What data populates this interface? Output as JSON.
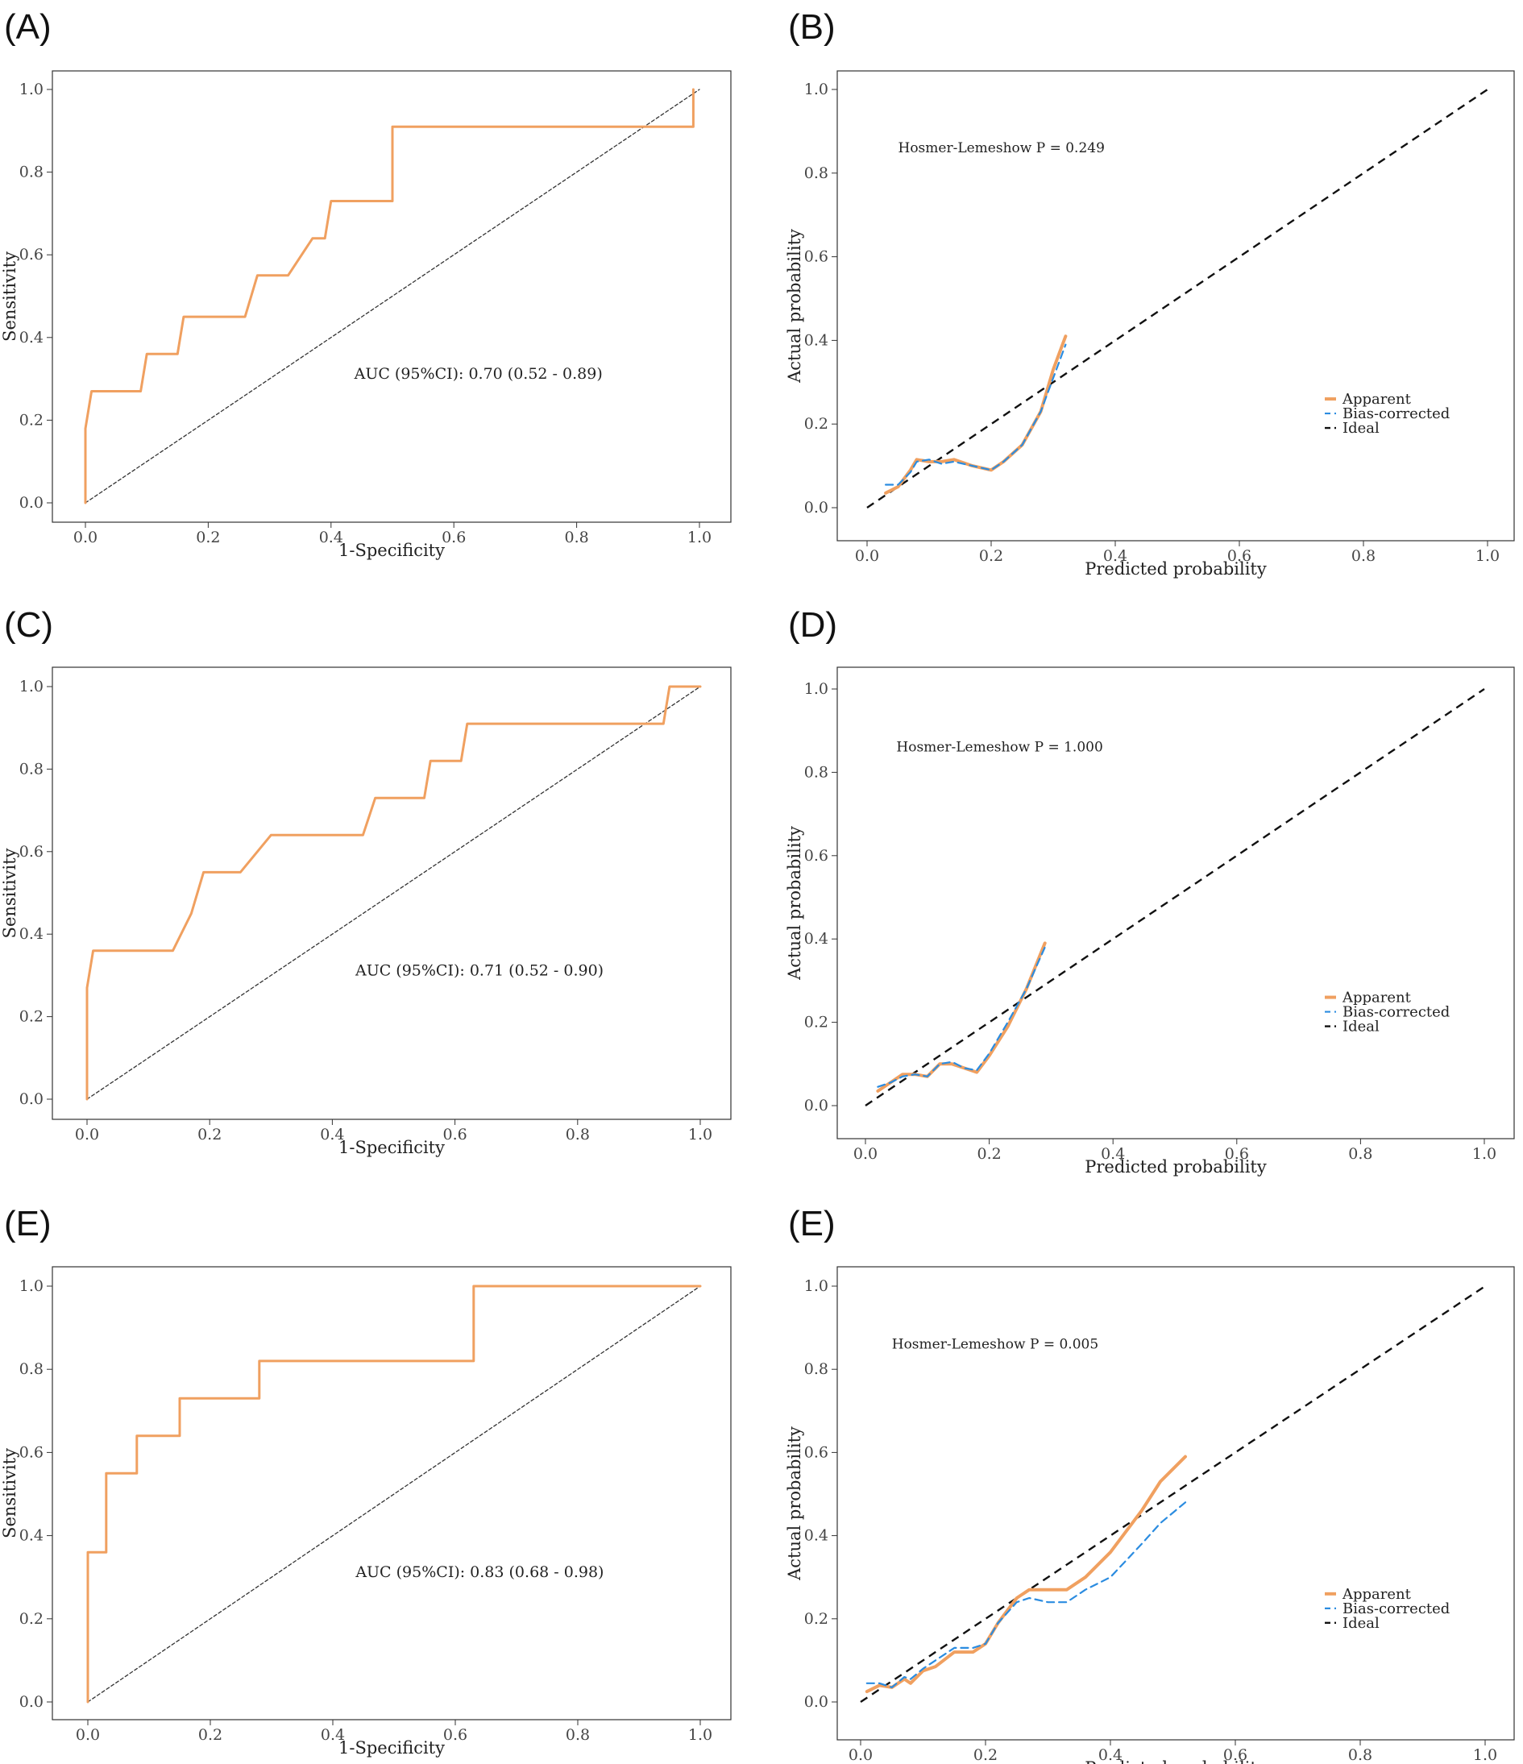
{
  "figure": {
    "colors": {
      "apparent": "#f0a060",
      "bias": "#2b8ce0",
      "ideal": "#111111",
      "roc": "#f0a060",
      "frame": "#333333"
    }
  },
  "chart_data": [
    {
      "panel": "(A)",
      "type": "line",
      "kind": "roc",
      "xlabel": "1-Specificity",
      "ylabel": "Sensitivity",
      "xlim": [
        0,
        1
      ],
      "ylim": [
        0,
        1
      ],
      "xticks": [
        "0.0",
        "0.2",
        "0.4",
        "0.6",
        "0.8",
        "1.0"
      ],
      "yticks": [
        "0.0",
        "0.2",
        "0.4",
        "0.6",
        "0.8",
        "1.0"
      ],
      "annotation": "AUC (95%CI): 0.70 (0.52 - 0.89)",
      "annotation_pos": [
        0.64,
        0.3
      ],
      "series": [
        {
          "name": "ROC",
          "role": "roc",
          "x": [
            0,
            0,
            0.01,
            0.09,
            0.1,
            0.15,
            0.16,
            0.26,
            0.28,
            0.33,
            0.37,
            0.39,
            0.4,
            0.5,
            0.5,
            0.99,
            0.99
          ],
          "y": [
            0,
            0.18,
            0.27,
            0.27,
            0.36,
            0.36,
            0.45,
            0.45,
            0.55,
            0.55,
            0.64,
            0.64,
            0.73,
            0.73,
            0.91,
            0.91,
            1.0
          ]
        },
        {
          "name": "Reference",
          "role": "diag",
          "x": [
            0,
            1
          ],
          "y": [
            0,
            1
          ]
        }
      ]
    },
    {
      "panel": "(B)",
      "type": "line",
      "kind": "calibration",
      "xlabel": "Predicted probability",
      "ylabel": "Actual probability",
      "xlim": [
        0,
        1
      ],
      "ylim": [
        0,
        1
      ],
      "xticks": [
        "0.0",
        "0.2",
        "0.4",
        "0.6",
        "0.8",
        "1.0"
      ],
      "yticks": [
        "0.0",
        "0.2",
        "0.4",
        "0.6",
        "0.8",
        "1.0"
      ],
      "annotation": "Hosmer-Lemeshow  P  =  0.249",
      "annotation_pos": [
        0.05,
        0.85
      ],
      "legend": [
        "Apparent",
        "Bias-corrected",
        "Ideal"
      ],
      "series": [
        {
          "name": "Apparent",
          "role": "apparent",
          "x": [
            0.03,
            0.05,
            0.07,
            0.08,
            0.1,
            0.12,
            0.14,
            0.17,
            0.2,
            0.22,
            0.25,
            0.28,
            0.3,
            0.32
          ],
          "y": [
            0.035,
            0.05,
            0.09,
            0.115,
            0.11,
            0.11,
            0.115,
            0.1,
            0.09,
            0.11,
            0.15,
            0.23,
            0.33,
            0.41
          ]
        },
        {
          "name": "Bias-corrected",
          "role": "bias",
          "x": [
            0.03,
            0.05,
            0.07,
            0.08,
            0.1,
            0.12,
            0.14,
            0.17,
            0.2,
            0.22,
            0.25,
            0.28,
            0.3,
            0.32
          ],
          "y": [
            0.055,
            0.055,
            0.085,
            0.11,
            0.115,
            0.105,
            0.11,
            0.1,
            0.09,
            0.11,
            0.15,
            0.23,
            0.31,
            0.39
          ]
        },
        {
          "name": "Ideal",
          "role": "ideal",
          "x": [
            0,
            1
          ],
          "y": [
            0,
            1
          ]
        }
      ]
    },
    {
      "panel": "(C)",
      "type": "line",
      "kind": "roc",
      "xlabel": "1-Specificity",
      "ylabel": "Sensitivity",
      "xlim": [
        0,
        1
      ],
      "ylim": [
        0,
        1
      ],
      "xticks": [
        "0.0",
        "0.2",
        "0.4",
        "0.6",
        "0.8",
        "1.0"
      ],
      "yticks": [
        "0.0",
        "0.2",
        "0.4",
        "0.6",
        "0.8",
        "1.0"
      ],
      "annotation": "AUC (95%CI): 0.71 (0.52 - 0.90)",
      "annotation_pos": [
        0.64,
        0.3
      ],
      "series": [
        {
          "name": "ROC",
          "role": "roc",
          "x": [
            0,
            0,
            0.01,
            0.14,
            0.17,
            0.19,
            0.25,
            0.3,
            0.45,
            0.47,
            0.55,
            0.56,
            0.61,
            0.62,
            0.94,
            0.95,
            1.0
          ],
          "y": [
            0,
            0.27,
            0.36,
            0.36,
            0.45,
            0.55,
            0.55,
            0.64,
            0.64,
            0.73,
            0.73,
            0.82,
            0.82,
            0.91,
            0.91,
            1.0,
            1.0
          ]
        },
        {
          "name": "Reference",
          "role": "diag",
          "x": [
            0,
            1
          ],
          "y": [
            0,
            1
          ]
        }
      ]
    },
    {
      "panel": "(D)",
      "type": "line",
      "kind": "calibration",
      "xlabel": "Predicted probability",
      "ylabel": "Actual probability",
      "xlim": [
        0,
        1
      ],
      "ylim": [
        0,
        1
      ],
      "xticks": [
        "0.0",
        "0.2",
        "0.4",
        "0.6",
        "0.8",
        "1.0"
      ],
      "yticks": [
        "0.0",
        "0.2",
        "0.4",
        "0.6",
        "0.8",
        "1.0"
      ],
      "annotation": "Hosmer-Lemeshow  P  =  1.000",
      "annotation_pos": [
        0.05,
        0.85
      ],
      "legend": [
        "Apparent",
        "Bias-corrected",
        "Ideal"
      ],
      "series": [
        {
          "name": "Apparent",
          "role": "apparent",
          "x": [
            0.02,
            0.04,
            0.06,
            0.08,
            0.1,
            0.12,
            0.14,
            0.16,
            0.18,
            0.2,
            0.23,
            0.26,
            0.29
          ],
          "y": [
            0.035,
            0.055,
            0.075,
            0.075,
            0.07,
            0.1,
            0.1,
            0.09,
            0.08,
            0.12,
            0.19,
            0.28,
            0.39
          ]
        },
        {
          "name": "Bias-corrected",
          "role": "bias",
          "x": [
            0.02,
            0.04,
            0.06,
            0.08,
            0.1,
            0.12,
            0.14,
            0.16,
            0.18,
            0.2,
            0.23,
            0.26,
            0.29
          ],
          "y": [
            0.045,
            0.055,
            0.07,
            0.075,
            0.07,
            0.1,
            0.105,
            0.09,
            0.085,
            0.125,
            0.2,
            0.28,
            0.38
          ]
        },
        {
          "name": "Ideal",
          "role": "ideal",
          "x": [
            0,
            1
          ],
          "y": [
            0,
            1
          ]
        }
      ]
    },
    {
      "panel": "(E)",
      "type": "line",
      "kind": "roc",
      "xlabel": "1-Specificity",
      "ylabel": "Sensitivity",
      "xlim": [
        0,
        1
      ],
      "ylim": [
        0,
        1
      ],
      "xticks": [
        "0.0",
        "0.2",
        "0.4",
        "0.6",
        "0.8",
        "1.0"
      ],
      "yticks": [
        "0.0",
        "0.2",
        "0.4",
        "0.6",
        "0.8",
        "1.0"
      ],
      "annotation": "AUC (95%CI): 0.83 (0.68 - 0.98)",
      "annotation_pos": [
        0.64,
        0.3
      ],
      "series": [
        {
          "name": "ROC",
          "role": "roc",
          "x": [
            0,
            0,
            0.03,
            0.03,
            0.08,
            0.08,
            0.15,
            0.15,
            0.28,
            0.28,
            0.63,
            0.63,
            1.0
          ],
          "y": [
            0,
            0.36,
            0.36,
            0.55,
            0.55,
            0.64,
            0.64,
            0.73,
            0.73,
            0.82,
            0.82,
            1.0,
            1.0
          ]
        },
        {
          "name": "Reference",
          "role": "diag",
          "x": [
            0,
            1
          ],
          "y": [
            0,
            1
          ]
        }
      ]
    },
    {
      "panel": "(E)",
      "type": "line",
      "kind": "calibration",
      "xlabel": "Predicted probability",
      "ylabel": "Actual probability",
      "xlim": [
        0,
        1
      ],
      "ylim": [
        0,
        1
      ],
      "xticks": [
        "0.0",
        "0.2",
        "0.4",
        "0.6",
        "0.8",
        "1.0"
      ],
      "yticks": [
        "0.0",
        "0.2",
        "0.4",
        "0.6",
        "0.8",
        "1.0"
      ],
      "annotation": "Hosmer-Lemeshow  P  =  0.005",
      "annotation_pos": [
        0.05,
        0.85
      ],
      "legend": [
        "Apparent",
        "Bias-corrected",
        "Ideal"
      ],
      "series": [
        {
          "name": "Apparent",
          "role": "apparent",
          "x": [
            0.01,
            0.03,
            0.05,
            0.07,
            0.08,
            0.1,
            0.12,
            0.15,
            0.18,
            0.2,
            0.22,
            0.25,
            0.27,
            0.3,
            0.33,
            0.36,
            0.4,
            0.45,
            0.48,
            0.52
          ],
          "y": [
            0.025,
            0.04,
            0.035,
            0.055,
            0.045,
            0.075,
            0.085,
            0.12,
            0.12,
            0.14,
            0.19,
            0.25,
            0.27,
            0.27,
            0.27,
            0.3,
            0.36,
            0.46,
            0.53,
            0.59
          ]
        },
        {
          "name": "Bias-corrected",
          "role": "bias",
          "x": [
            0.01,
            0.03,
            0.05,
            0.07,
            0.08,
            0.1,
            0.12,
            0.15,
            0.18,
            0.2,
            0.22,
            0.25,
            0.27,
            0.3,
            0.33,
            0.36,
            0.4,
            0.45,
            0.48,
            0.52
          ],
          "y": [
            0.045,
            0.045,
            0.035,
            0.06,
            0.055,
            0.08,
            0.1,
            0.13,
            0.13,
            0.14,
            0.19,
            0.24,
            0.25,
            0.24,
            0.24,
            0.27,
            0.3,
            0.38,
            0.43,
            0.48
          ]
        },
        {
          "name": "Ideal",
          "role": "ideal",
          "x": [
            0,
            1
          ],
          "y": [
            0,
            1
          ]
        }
      ]
    }
  ]
}
